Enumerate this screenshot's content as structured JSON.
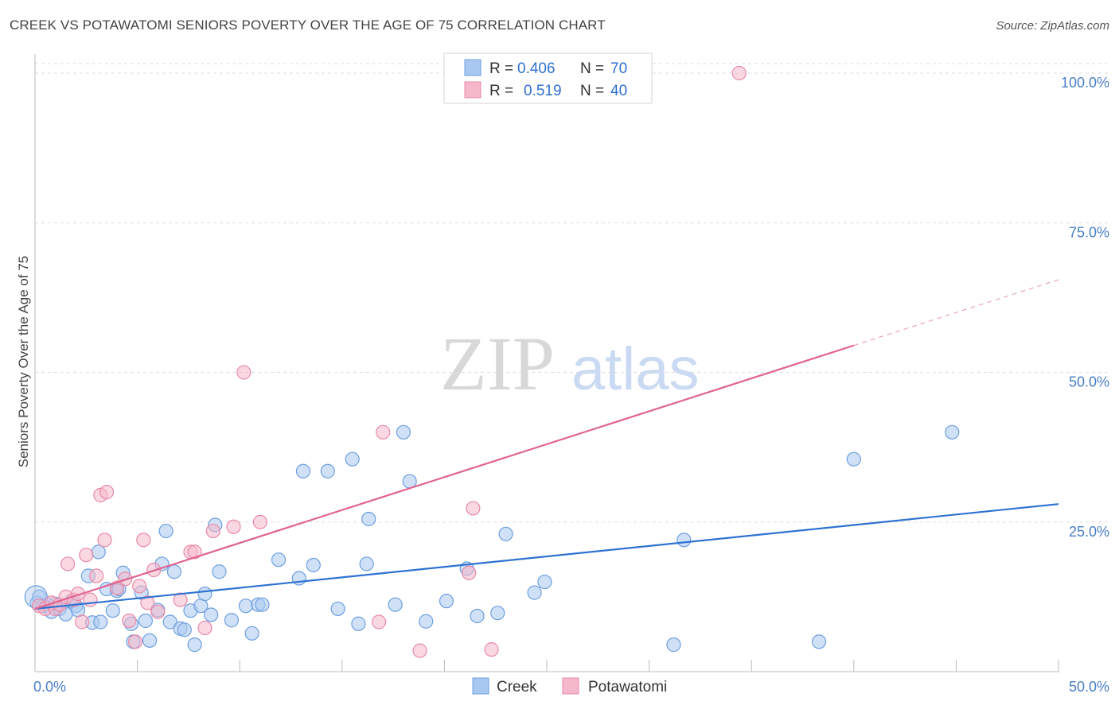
{
  "title": "CREEK VS POTAWATOMI SENIORS POVERTY OVER THE AGE OF 75 CORRELATION CHART",
  "source": "Source: ZipAtlas.com",
  "watermark": {
    "zip": "ZIP",
    "atlas": "atlas"
  },
  "legend": {
    "rows": [
      {
        "r_label": "R =",
        "r_value": "0.406",
        "n_label": "N =",
        "n_value": "70"
      },
      {
        "r_label": "R =",
        "r_value": "0.519",
        "n_label": "N =",
        "n_value": "40"
      }
    ]
  },
  "bottom_legend": [
    "Creek",
    "Potawatomi"
  ],
  "colors": {
    "creek_fill": "#a9c8f0",
    "creek_stroke": "#6e9fe0",
    "creek_line": "#2f72d2",
    "pota_fill": "#f5b8cb",
    "pota_stroke": "#e88aa8",
    "pota_line": "#e0648f",
    "grid": "#dddddd",
    "tick_label": "#4a7fc8"
  },
  "chart_data": {
    "type": "scatter",
    "ylabel": "Seniors Poverty Over the Age of 75",
    "xlim": [
      0,
      50
    ],
    "ylim": [
      0,
      100
    ],
    "x_tick_labels": [
      "0.0%",
      "50.0%"
    ],
    "y_ticks": [
      25,
      50,
      75,
      100
    ],
    "y_tick_labels": [
      "25.0%",
      "50.0%",
      "75.0%",
      "100.0%"
    ],
    "grid": true,
    "legend_position": "top-center",
    "series": [
      {
        "name": "Creek",
        "points": [
          [
            0.1,
            11.5
          ],
          [
            0.2,
            12.5
          ],
          [
            0.4,
            11
          ],
          [
            0.6,
            11.2
          ],
          [
            0.8,
            10
          ],
          [
            1.0,
            11.3
          ],
          [
            1.2,
            10.5
          ],
          [
            1.5,
            9.6
          ],
          [
            1.8,
            11.8
          ],
          [
            2.0,
            11.0
          ],
          [
            2.1,
            10.3
          ],
          [
            2.6,
            16
          ],
          [
            2.8,
            8.2
          ],
          [
            3.1,
            20
          ],
          [
            3.2,
            8.3
          ],
          [
            3.5,
            13.8
          ],
          [
            3.8,
            10.2
          ],
          [
            4.0,
            13.5
          ],
          [
            4.1,
            13.8
          ],
          [
            4.3,
            16.5
          ],
          [
            4.7,
            8
          ],
          [
            4.8,
            5
          ],
          [
            5.2,
            13.2
          ],
          [
            5.4,
            8.5
          ],
          [
            5.6,
            5.2
          ],
          [
            6.0,
            10.3
          ],
          [
            6.2,
            18
          ],
          [
            6.4,
            23.5
          ],
          [
            6.6,
            8.3
          ],
          [
            6.8,
            16.7
          ],
          [
            7.1,
            7.2
          ],
          [
            7.3,
            7
          ],
          [
            7.6,
            10.2
          ],
          [
            7.8,
            4.5
          ],
          [
            8.1,
            11
          ],
          [
            8.3,
            13
          ],
          [
            8.6,
            9.5
          ],
          [
            8.8,
            24.5
          ],
          [
            9.0,
            16.7
          ],
          [
            9.6,
            8.6
          ],
          [
            10.3,
            11
          ],
          [
            10.6,
            6.4
          ],
          [
            10.9,
            11.2
          ],
          [
            11.1,
            11.2
          ],
          [
            11.9,
            18.7
          ],
          [
            12.9,
            15.6
          ],
          [
            13.1,
            33.5
          ],
          [
            13.6,
            17.8
          ],
          [
            14.3,
            33.5
          ],
          [
            14.8,
            10.5
          ],
          [
            15.5,
            35.5
          ],
          [
            15.8,
            8
          ],
          [
            16.2,
            18
          ],
          [
            16.3,
            25.5
          ],
          [
            17.6,
            11.2
          ],
          [
            18.0,
            40
          ],
          [
            18.3,
            31.8
          ],
          [
            19.1,
            8.4
          ],
          [
            20.1,
            11.8
          ],
          [
            21.1,
            17.2
          ],
          [
            21.6,
            9.3
          ],
          [
            22.6,
            9.8
          ],
          [
            23.0,
            23
          ],
          [
            24.4,
            13.2
          ],
          [
            24.9,
            15
          ],
          [
            31.2,
            4.5
          ],
          [
            31.7,
            22
          ],
          [
            38.3,
            5
          ],
          [
            40.0,
            35.5
          ],
          [
            44.8,
            40
          ]
        ],
        "trend": [
          [
            0,
            10.5
          ],
          [
            50,
            28
          ]
        ]
      },
      {
        "name": "Potawatomi",
        "points": [
          [
            0.2,
            11
          ],
          [
            0.5,
            10.5
          ],
          [
            0.8,
            11.5
          ],
          [
            1.0,
            10.5
          ],
          [
            1.2,
            11.2
          ],
          [
            1.5,
            12.5
          ],
          [
            1.6,
            18
          ],
          [
            1.9,
            12
          ],
          [
            2.1,
            13
          ],
          [
            2.3,
            8.3
          ],
          [
            2.5,
            19.5
          ],
          [
            2.7,
            12
          ],
          [
            3.0,
            16
          ],
          [
            3.2,
            29.5
          ],
          [
            3.5,
            30
          ],
          [
            3.4,
            22
          ],
          [
            4.0,
            14
          ],
          [
            4.4,
            15.5
          ],
          [
            4.6,
            8.5
          ],
          [
            4.9,
            5
          ],
          [
            5.1,
            14.3
          ],
          [
            5.3,
            22
          ],
          [
            5.5,
            11.5
          ],
          [
            5.8,
            17
          ],
          [
            6.0,
            10
          ],
          [
            7.1,
            12
          ],
          [
            7.6,
            20
          ],
          [
            7.8,
            20
          ],
          [
            8.3,
            7.3
          ],
          [
            8.7,
            23.5
          ],
          [
            9.7,
            24.2
          ],
          [
            10.2,
            50
          ],
          [
            11.0,
            25
          ],
          [
            16.8,
            8.3
          ],
          [
            17.0,
            40
          ],
          [
            18.8,
            3.5
          ],
          [
            21.2,
            16.5
          ],
          [
            21.4,
            27.3
          ],
          [
            22.3,
            3.7
          ],
          [
            34.4,
            100
          ]
        ],
        "trend": [
          [
            0,
            10.5
          ],
          [
            40,
            54.5
          ]
        ],
        "trend_extension": [
          [
            40,
            54.5
          ],
          [
            50,
            65.5
          ]
        ]
      }
    ]
  }
}
